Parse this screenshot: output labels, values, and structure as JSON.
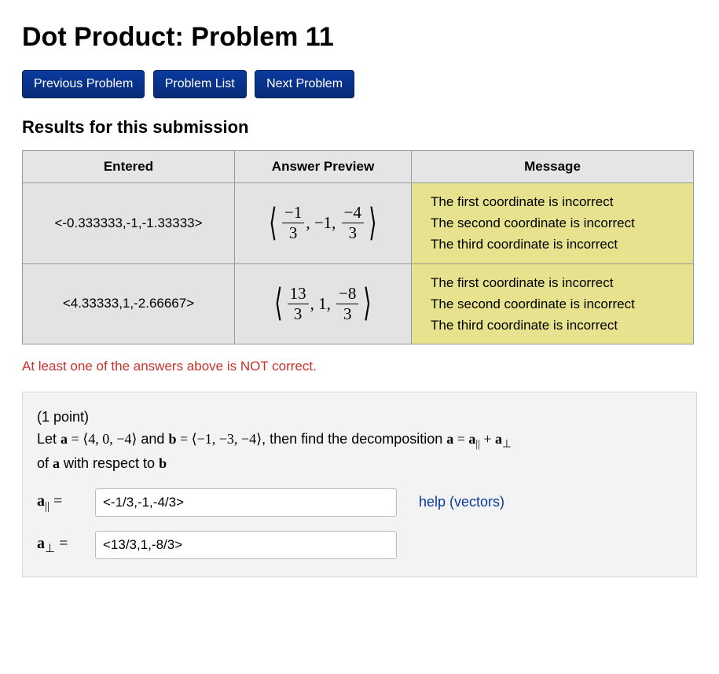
{
  "title": "Dot Product: Problem 11",
  "nav": {
    "prev": "Previous Problem",
    "list": "Problem List",
    "next": "Next Problem"
  },
  "results_heading": "Results for this submission",
  "table": {
    "headers": {
      "entered": "Entered",
      "preview": "Answer Preview",
      "message": "Message"
    },
    "rows": [
      {
        "entered": "<-0.333333,-1,-1.33333>",
        "preview": {
          "n1": "−1",
          "d1": "3",
          "mid": "−1",
          "n2": "−4",
          "d2": "3"
        },
        "messages": [
          "The first coordinate is incorrect",
          "The second coordinate is incorrect",
          "The third coordinate is incorrect"
        ]
      },
      {
        "entered": "<4.33333,1,-2.66667>",
        "preview": {
          "n1": "13",
          "d1": "3",
          "mid": "1",
          "n2": "−8",
          "d2": "3"
        },
        "messages": [
          "The first coordinate is incorrect",
          "The second coordinate is incorrect",
          "The third coordinate is incorrect"
        ]
      }
    ]
  },
  "warning": "At least one of the answers above is NOT correct.",
  "problem": {
    "points": "(1 point)",
    "let": "Let ",
    "a_label": "a",
    "eq": " = ",
    "a_vec": "⟨4, 0, −4⟩",
    "and": " and ",
    "b_label": "b",
    "b_vec": "⟨−1, −3, −4⟩",
    "then": ", then find the decomposition ",
    "decomp_lhs": "a",
    "decomp_rhs_par": "a",
    "decomp_rhs_perp": "a",
    "of_wrt": "of ",
    "wrt": " with respect to ",
    "b_label2": "b"
  },
  "inputs": {
    "par_label_sym": "a",
    "par_sub": "||",
    "par_eq": " = ",
    "par_value": "<-1/3,-1,-4/3>",
    "perp_label_sym": "a",
    "perp_sub": "⊥",
    "perp_eq": " = ",
    "perp_value": "<13/3,1,-8/3>",
    "help": "help (vectors)"
  },
  "colors": {
    "button_bg_top": "#0a3a9e",
    "button_bg_bottom": "#072c78",
    "header_bg": "#e5e5e5",
    "cell_bg": "#e3e3e3",
    "message_bg": "#e7e28d",
    "warning_text": "#c9302c",
    "problem_bg": "#f3f3f3",
    "link": "#0a3a9e"
  }
}
